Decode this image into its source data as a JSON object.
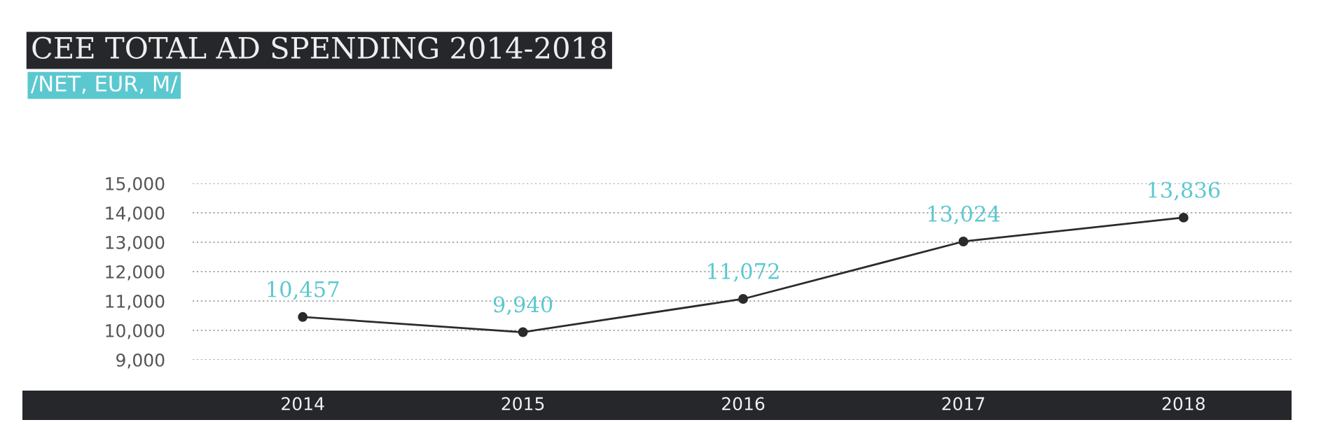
{
  "chart_data": {
    "type": "line",
    "title": "CEE TOTAL AD SPENDING 2014-2018",
    "subtitle": "/NET, EUR, M/",
    "categories": [
      "2014",
      "2015",
      "2016",
      "2017",
      "2018"
    ],
    "series": [
      {
        "color": "#2b2b2b",
        "values": [
          10457,
          9940,
          11072,
          13024,
          13836
        ],
        "value_labels": [
          "10,457",
          "9,940",
          "11,072",
          "13,024",
          "13,836"
        ]
      }
    ],
    "ylim": [
      9000,
      15000
    ],
    "yticks": [
      {
        "value": 9000,
        "label": "9,000"
      },
      {
        "value": 10000,
        "label": "10,000"
      },
      {
        "value": 11000,
        "label": "11,000"
      },
      {
        "value": 12000,
        "label": "12,000"
      },
      {
        "value": 13000,
        "label": "13,000"
      },
      {
        "value": 14000,
        "label": "14,000"
      },
      {
        "value": 15000,
        "label": "15,000"
      }
    ],
    "grid": "y",
    "marker": "circle",
    "line_style": "solid",
    "legend": false
  }
}
